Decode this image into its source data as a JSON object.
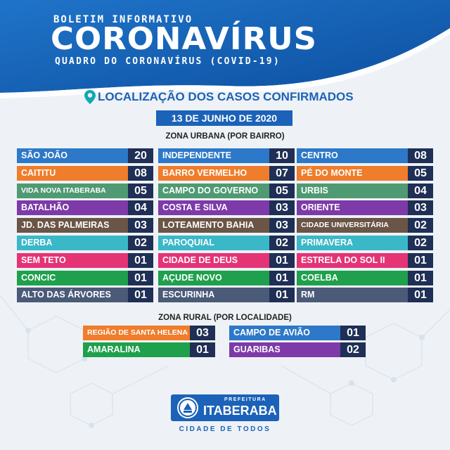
{
  "header": {
    "kicker": "BOLETIM INFORMATIVO",
    "title": "CORONAVÍRUS",
    "subtitle": "QUADRO DO CORONAVÍRUS (COVID-19)"
  },
  "location_title": "LOCALIZAÇÃO DOS CASOS CONFIRMADOS",
  "date": "13 DE JUNHO DE 2020",
  "urban": {
    "heading": "ZONA URBANA (POR BAIRRO)",
    "columns": [
      [
        {
          "name": "SÃO JOÃO",
          "count": "20",
          "color": "#2d78c8"
        },
        {
          "name": "CAITITU",
          "count": "08",
          "color": "#ef7d2c"
        },
        {
          "name": "VIDA NOVA ITABERABA",
          "count": "05",
          "color": "#4f9a72"
        },
        {
          "name": "BATALHÃO",
          "count": "04",
          "color": "#7d3aa8"
        },
        {
          "name": "JD. DAS PALMEIRAS",
          "count": "03",
          "color": "#6a5546"
        },
        {
          "name": "DERBA",
          "count": "02",
          "color": "#3ab8c8"
        },
        {
          "name": "SEM TETO",
          "count": "01",
          "color": "#e43475"
        },
        {
          "name": "CONCIC",
          "count": "01",
          "color": "#1fa04c"
        },
        {
          "name": "ALTO DAS ÁRVORES",
          "count": "01",
          "color": "#4a5a78"
        }
      ],
      [
        {
          "name": "INDEPENDENTE",
          "count": "10",
          "color": "#2d78c8"
        },
        {
          "name": "BARRO VERMELHO",
          "count": "07",
          "color": "#ef7d2c"
        },
        {
          "name": "CAMPO DO GOVERNO",
          "count": "05",
          "color": "#4f9a72"
        },
        {
          "name": "COSTA E SILVA",
          "count": "03",
          "color": "#7d3aa8"
        },
        {
          "name": "LOTEAMENTO BAHIA",
          "count": "03",
          "color": "#6a5546"
        },
        {
          "name": "PAROQUIAL",
          "count": "02",
          "color": "#3ab8c8"
        },
        {
          "name": "CIDADE DE DEUS",
          "count": "01",
          "color": "#e43475"
        },
        {
          "name": "AÇUDE NOVO",
          "count": "01",
          "color": "#1fa04c"
        },
        {
          "name": "ESCURINHA",
          "count": "01",
          "color": "#4a5a78"
        }
      ],
      [
        {
          "name": "CENTRO",
          "count": "08",
          "color": "#2d78c8"
        },
        {
          "name": "PÉ DO MONTE",
          "count": "05",
          "color": "#ef7d2c"
        },
        {
          "name": "URBIS",
          "count": "04",
          "color": "#4f9a72"
        },
        {
          "name": "ORIENTE",
          "count": "03",
          "color": "#7d3aa8"
        },
        {
          "name": "CIDADE UNIVERSITÁRIA",
          "count": "02",
          "color": "#6a5546"
        },
        {
          "name": "PRIMAVERA",
          "count": "02",
          "color": "#3ab8c8"
        },
        {
          "name": "ESTRELA DO SOL II",
          "count": "01",
          "color": "#e43475"
        },
        {
          "name": "COELBA",
          "count": "01",
          "color": "#1fa04c"
        },
        {
          "name": "RM",
          "count": "01",
          "color": "#4a5a78"
        }
      ]
    ]
  },
  "rural": {
    "heading": "ZONA RURAL (POR LOCALIDADE)",
    "items": [
      {
        "name": "REGIÃO DE SANTA HELENA",
        "count": "03",
        "color": "#ef7d2c"
      },
      {
        "name": "CAMPO DE AVIÃO",
        "count": "01",
        "color": "#2d78c8"
      },
      {
        "name": "AMARALINA",
        "count": "01",
        "color": "#1fa04c"
      },
      {
        "name": "GUARIBAS",
        "count": "02",
        "color": "#7d3aa8"
      }
    ]
  },
  "logo": {
    "prefix": "PREFEITURA",
    "name": "ITABERABA",
    "slogan": "CIDADE DE TODOS"
  }
}
